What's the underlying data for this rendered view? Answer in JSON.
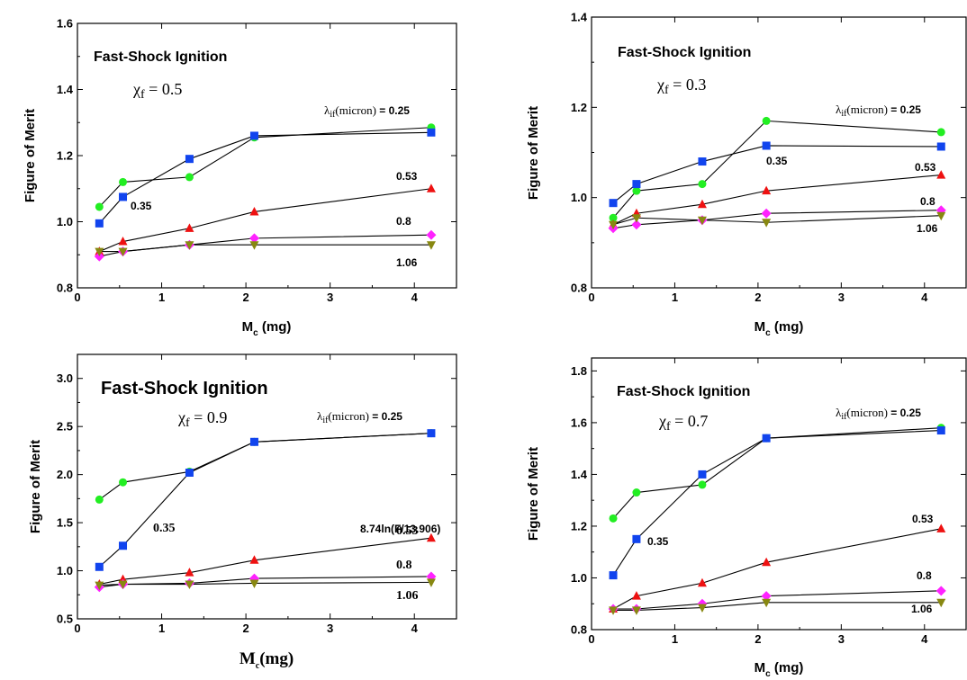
{
  "colors": {
    "green": "#22ee22",
    "blue": "#1144ee",
    "red": "#ee1111",
    "magenta": "#ff22ff",
    "olive": "#888811",
    "line": "#000000"
  },
  "chart_data": [
    {
      "type": "line",
      "title": "Fast-Shock Ignition",
      "chi_label": "χf = 0.5",
      "lambda_label": "λif(micron)",
      "xlabel": "Mc (mg)",
      "ylabel": "Figure of Merit",
      "xlim": [
        0,
        4.5
      ],
      "ylim": [
        0.8,
        1.6
      ],
      "xticks": [
        0,
        1,
        2,
        3,
        4
      ],
      "yticks": [
        "0.8",
        "1.0",
        "1.2",
        "1.4",
        "1.6"
      ],
      "x": [
        0.26,
        0.54,
        1.33,
        2.1,
        4.2
      ],
      "series": [
        {
          "name": "0.25",
          "marker": "circle",
          "color": "green",
          "values": [
            1.045,
            1.12,
            1.135,
            1.255,
            1.285
          ]
        },
        {
          "name": "0.35",
          "marker": "square",
          "color": "blue",
          "values": [
            0.995,
            1.075,
            1.19,
            1.26,
            1.27
          ]
        },
        {
          "name": "0.53",
          "marker": "triangle-up",
          "color": "red",
          "values": [
            0.91,
            0.94,
            0.98,
            1.03,
            1.1
          ]
        },
        {
          "name": "0.8",
          "marker": "diamond",
          "color": "magenta",
          "values": [
            0.895,
            0.91,
            0.93,
            0.95,
            0.96
          ]
        },
        {
          "name": "1.06",
          "marker": "triangle-down",
          "color": "olive",
          "values": [
            0.91,
            0.91,
            0.93,
            0.93,
            0.93
          ]
        }
      ]
    },
    {
      "type": "line",
      "title": "Fast-Shock Ignition",
      "chi_label": "χf = 0.3",
      "lambda_label": "λif(micron)",
      "xlabel": "Mc (mg)",
      "ylabel": "Figure of Merit",
      "xlim": [
        0,
        4.5
      ],
      "ylim": [
        0.8,
        1.4
      ],
      "xticks": [
        0,
        1,
        2,
        3,
        4
      ],
      "yticks": [
        "0.8",
        "1.0",
        "1.2",
        "1.4"
      ],
      "x": [
        0.26,
        0.54,
        1.33,
        2.1,
        4.2
      ],
      "series": [
        {
          "name": "0.25",
          "marker": "circle",
          "color": "green",
          "values": [
            0.955,
            1.015,
            1.03,
            1.17,
            1.145
          ]
        },
        {
          "name": "0.35",
          "marker": "square",
          "color": "blue",
          "values": [
            0.988,
            1.03,
            1.08,
            1.115,
            1.113
          ]
        },
        {
          "name": "0.53",
          "marker": "triangle-up",
          "color": "red",
          "values": [
            0.94,
            0.965,
            0.985,
            1.015,
            1.05
          ]
        },
        {
          "name": "0.8",
          "marker": "diamond",
          "color": "magenta",
          "values": [
            0.932,
            0.94,
            0.95,
            0.965,
            0.972
          ]
        },
        {
          "name": "1.06",
          "marker": "triangle-down",
          "color": "olive",
          "values": [
            0.94,
            0.955,
            0.95,
            0.945,
            0.96
          ]
        }
      ]
    },
    {
      "type": "line",
      "title": "Fast-Shock Ignition",
      "chi_label": "χf = 0.9",
      "lambda_label": "λif(micron)",
      "xlabel": "Mc(mg)",
      "ylabel": "Figure of Merit",
      "xlim": [
        0,
        4.5
      ],
      "ylim": [
        0.5,
        3.25
      ],
      "xticks": [
        0,
        1,
        2,
        3,
        4
      ],
      "yticks": [
        "0.5",
        "1.0",
        "1.5",
        "2.0",
        "2.5",
        "3.0"
      ],
      "x": [
        0.26,
        0.54,
        1.33,
        2.1,
        4.2
      ],
      "extra_annotation": "8.74ln(F/13.906)",
      "series": [
        {
          "name": "0.25",
          "marker": "circle",
          "color": "green",
          "values": [
            1.74,
            1.92,
            2.03,
            2.34,
            2.43
          ]
        },
        {
          "name": "0.35",
          "marker": "square",
          "color": "blue",
          "values": [
            1.04,
            1.26,
            2.02,
            2.34,
            2.43
          ]
        },
        {
          "name": "0.53",
          "marker": "triangle-up",
          "color": "red",
          "values": [
            0.86,
            0.91,
            0.98,
            1.11,
            1.34
          ]
        },
        {
          "name": "0.8",
          "marker": "diamond",
          "color": "magenta",
          "values": [
            0.83,
            0.86,
            0.87,
            0.92,
            0.94
          ]
        },
        {
          "name": "1.06",
          "marker": "triangle-down",
          "color": "olive",
          "values": [
            0.85,
            0.86,
            0.86,
            0.87,
            0.88
          ]
        }
      ]
    },
    {
      "type": "line",
      "title": "Fast-Shock Ignition",
      "chi_label": "χf = 0.7",
      "lambda_label": "λif(micron)",
      "xlabel": "Mc (mg)",
      "ylabel": "Figure of Merit",
      "xlim": [
        0,
        4.5
      ],
      "ylim": [
        0.8,
        1.85
      ],
      "xticks": [
        0,
        1,
        2,
        3,
        4
      ],
      "yticks": [
        "0.8",
        "1.0",
        "1.2",
        "1.4",
        "1.6",
        "1.8"
      ],
      "x": [
        0.26,
        0.54,
        1.33,
        2.1,
        4.2
      ],
      "series": [
        {
          "name": "0.25",
          "marker": "circle",
          "color": "green",
          "values": [
            1.23,
            1.33,
            1.36,
            1.54,
            1.58
          ]
        },
        {
          "name": "0.35",
          "marker": "square",
          "color": "blue",
          "values": [
            1.01,
            1.15,
            1.4,
            1.54,
            1.57
          ]
        },
        {
          "name": "0.53",
          "marker": "triangle-up",
          "color": "red",
          "values": [
            0.88,
            0.93,
            0.98,
            1.06,
            1.19
          ]
        },
        {
          "name": "0.8",
          "marker": "diamond",
          "color": "magenta",
          "values": [
            0.88,
            0.88,
            0.9,
            0.93,
            0.95
          ]
        },
        {
          "name": "1.06",
          "marker": "triangle-down",
          "color": "olive",
          "values": [
            0.875,
            0.875,
            0.885,
            0.905,
            0.905
          ]
        }
      ]
    }
  ]
}
